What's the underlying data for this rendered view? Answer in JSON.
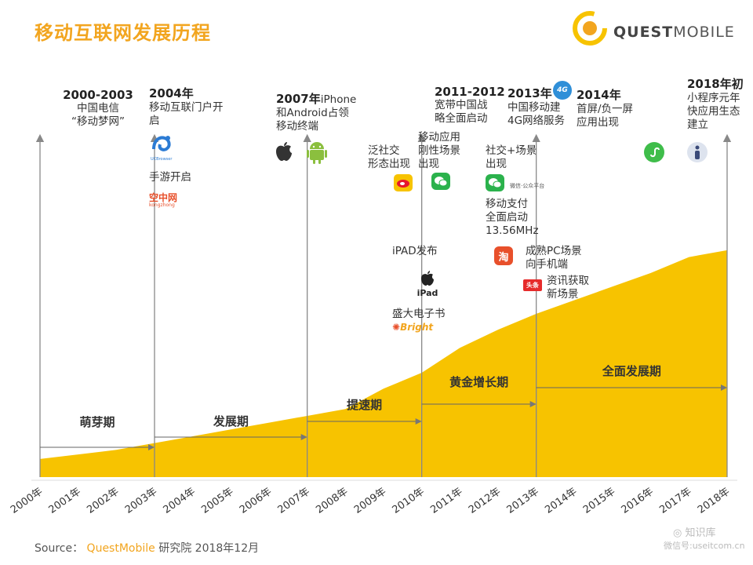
{
  "title": "移动互联网发展历程",
  "logo": {
    "part1": "QUEST",
    "part2": "MOBILE"
  },
  "chart_data": {
    "type": "area",
    "title": "移动互联网发展历程",
    "x": [
      "2000年",
      "2001年",
      "2002年",
      "2003年",
      "2004年",
      "2005年",
      "2006年",
      "2007年",
      "2008年",
      "2009年",
      "2010年",
      "2011年",
      "2012年",
      "2013年",
      "2014年",
      "2015年",
      "2016年",
      "2017年",
      "2018年"
    ],
    "values": [
      8,
      10,
      12,
      15,
      18,
      21,
      24,
      27,
      30,
      39,
      46,
      57,
      65,
      72,
      78,
      84,
      90,
      97,
      100
    ],
    "ylim": [
      0,
      110
    ],
    "color": "#f7c300",
    "phases": [
      {
        "label": "萌芽期",
        "from": 0,
        "to": 3
      },
      {
        "label": "发展期",
        "from": 3,
        "to": 7
      },
      {
        "label": "提速期",
        "from": 7,
        "to": 10
      },
      {
        "label": "黄金增长期",
        "from": 10,
        "to": 13
      },
      {
        "label": "全面发展期",
        "from": 13,
        "to": 18
      }
    ],
    "milestone_years": [
      0,
      3,
      7,
      10,
      13,
      18
    ]
  },
  "annotations": {
    "y2000": {
      "year": "2000-2003",
      "text": "中国电信\n“移动梦网”"
    },
    "y2004": {
      "year": "2004年",
      "text": "移动互联门户开\n启"
    },
    "y2004_game": "手游开启",
    "y2007": {
      "year": "2007年",
      "year_rest": "iPhone",
      "text": "和Android占领\n移动终端"
    },
    "social": "泛社交\n形态出现",
    "rigid": "移动应用\n刚性场景\n出现",
    "y2011": {
      "year": "2011-2012",
      "text": "宽带中国战\n略全面启动"
    },
    "y2013": {
      "year": "2013年",
      "text": "中国移动建\n4G网络服务"
    },
    "y2014": {
      "year": "2014年",
      "text": "首屏/负一屏\n应用出现"
    },
    "y2018": {
      "year": "2018年初",
      "text": "小程序元年\n快应用生态\n建立"
    },
    "social_scene": "社交+场景\n出现",
    "pay": "移动支付\n全面启动\n13.56MHz",
    "ipad": "iPAD发布",
    "ipad_label": "iPad",
    "bright": "盛大电子书",
    "bright_logo": "Bright",
    "pc": "成熟PC场景\n向手机端",
    "news": "资讯获取\n新场景",
    "wechat_public": "微信·公众平台"
  },
  "icons": {
    "uc": "UC",
    "uc_sub": "UCBrowser",
    "kongzhong": "空中网",
    "kongzhong_sub": "kongzhong",
    "taobao": "淘",
    "toutiao": "头条",
    "fourg": "4G"
  },
  "source": {
    "prefix": "Source：",
    "brand": "QuestMobile",
    "suffix": "研究院 2018年12月"
  },
  "watermark": {
    "line1": "知识库",
    "line2": "微信号:useitcom.cn"
  }
}
